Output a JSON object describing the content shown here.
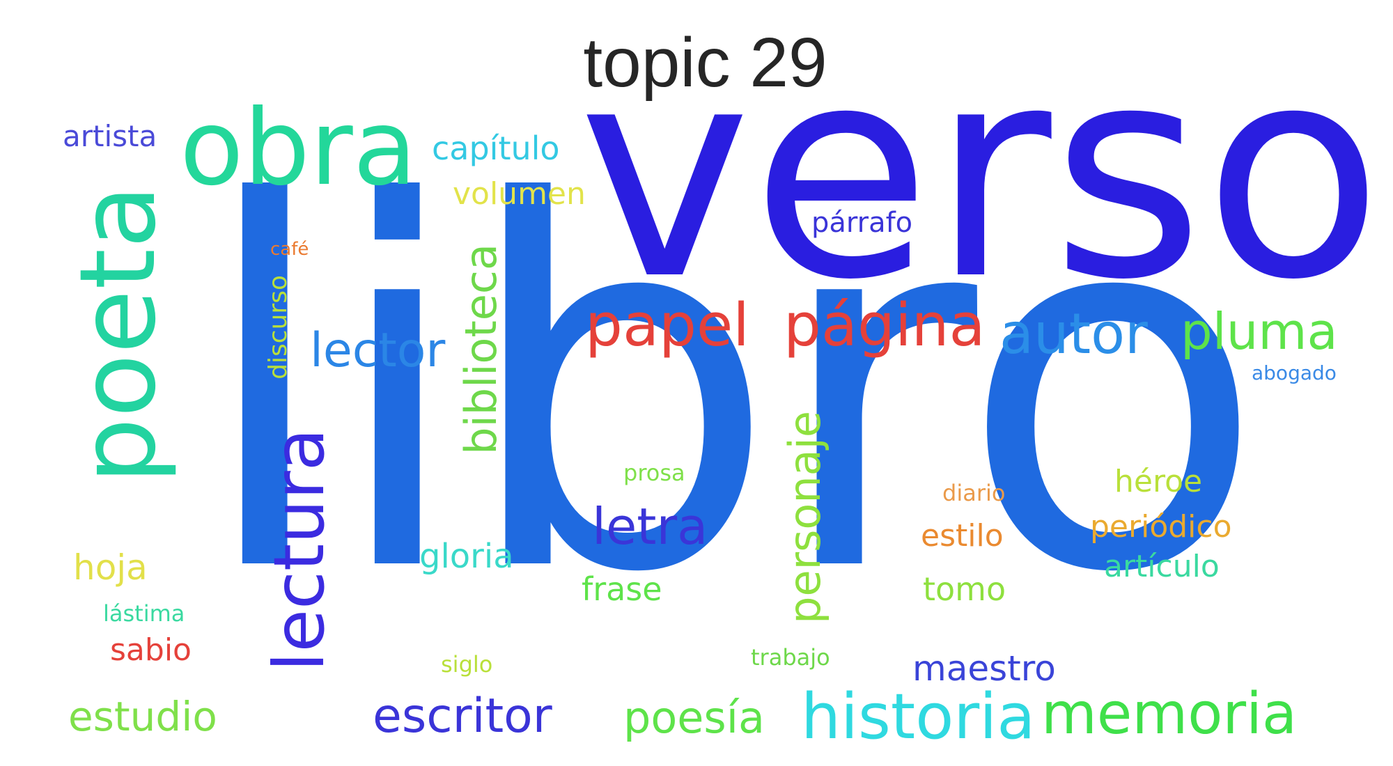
{
  "title": "topic 29",
  "words": {
    "libro": "libro",
    "verso": "verso",
    "poeta": "poeta",
    "obra": "obra",
    "lectura": "lectura",
    "biblioteca": "biblioteca",
    "papel": "papel",
    "pagina": "página",
    "autor": "autor",
    "pluma": "pluma",
    "lector": "lector",
    "personaje": "personaje",
    "letra": "letra",
    "historia": "historia",
    "memoria": "memoria",
    "escritor": "escritor",
    "poesia": "poesía",
    "estudio": "estudio",
    "maestro": "maestro",
    "artista": "artista",
    "capitulo": "capítulo",
    "volumen": "volumen",
    "parrafo": "párrafo",
    "cafe": "café",
    "discurso": "discurso",
    "abogado": "abogado",
    "prosa": "prosa",
    "diario": "diario",
    "heroe": "héroe",
    "estilo": "estilo",
    "periodico": "periódico",
    "gloria": "gloria",
    "articulo": "artículo",
    "hoja": "hoja",
    "frase": "frase",
    "tomo": "tomo",
    "lastima": "lástima",
    "sabio": "sabio",
    "siglo": "siglo",
    "trabajo": "trabajo"
  },
  "colors": {
    "libro": "#1f6ae0",
    "verso": "#2a1ee0",
    "poeta": "#23d3a0",
    "obra": "#23d79a",
    "lectura": "#3b2be0",
    "biblioteca": "#6ed84a",
    "papel": "#e5413a",
    "pagina": "#e5413a",
    "autor": "#2b8ee8",
    "pluma": "#5ee34a",
    "lector": "#2b86e6",
    "personaje": "#8ee03e",
    "letra": "#3a35d8",
    "historia": "#2fd9e0",
    "memoria": "#3fe04a",
    "escritor": "#3a34d8",
    "poesia": "#5ee34a",
    "estudio": "#7fe04a",
    "maestro": "#3a44d8",
    "artista": "#4a4ad8",
    "capitulo": "#33c9e3",
    "volumen": "#e2e34a",
    "parrafo": "#3a34d8",
    "cafe": "#ea7a30",
    "discurso": "#b9e03a",
    "abogado": "#3a8ae6",
    "prosa": "#7fe04a",
    "diario": "#ea9a4a",
    "heroe": "#b9e03a",
    "estilo": "#ea8a30",
    "periodico": "#eaaa30",
    "gloria": "#3ad9c9",
    "articulo": "#3ad9a0",
    "hoja": "#e2e04a",
    "frase": "#5ee34a",
    "tomo": "#8ee03e",
    "lastima": "#3ad9a0",
    "sabio": "#e5413a",
    "siglo": "#b9e03a",
    "trabajo": "#6ed84a"
  }
}
